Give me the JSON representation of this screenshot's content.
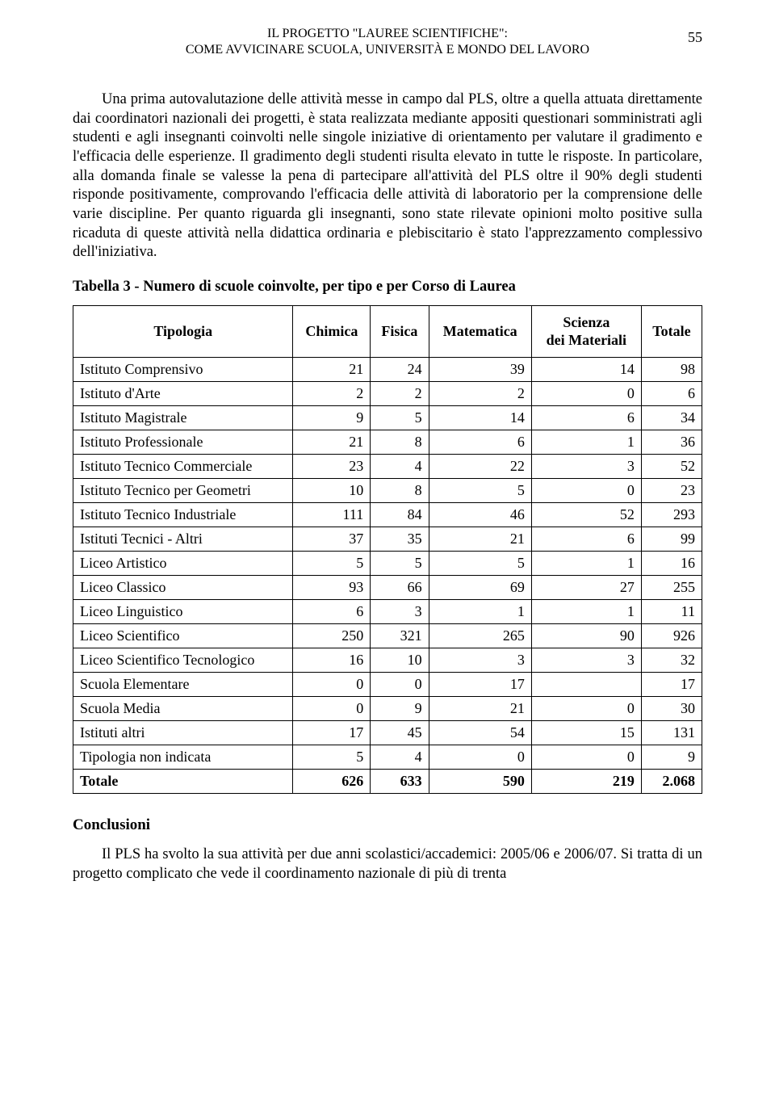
{
  "page_number": "55",
  "header": {
    "line1": "IL PROGETTO \"LAUREE SCIENTIFICHE\":",
    "line2": "COME AVVICINARE SCUOLA, UNIVERSITÀ E MONDO DEL LAVORO"
  },
  "paragraph1": "Una prima autovalutazione delle attività messe in campo dal PLS, oltre a quella attuata direttamente dai coordinatori nazionali dei progetti, è stata realizzata mediante appositi questionari somministrati agli studenti e agli insegnanti coinvolti nelle singole iniziative di orientamento per valutare il gradimento e l'efficacia delle esperienze. Il gradimento degli studenti risulta elevato in tutte le risposte. In particolare, alla domanda finale se valesse la pena di partecipare all'attività del PLS oltre il 90% degli studenti risponde positivamente, comprovando l'efficacia delle attività di laboratorio per la comprensione delle varie discipline. Per quanto riguarda gli insegnanti, sono state rilevate opinioni molto positive sulla ricaduta di queste attività nella didattica ordinaria e plebiscitario è stato l'apprezzamento complessivo dell'iniziativa.",
  "table_caption": "Tabella 3 - Numero di scuole coinvolte, per tipo e per Corso di Laurea",
  "table": {
    "columns": {
      "tipologia": "Tipologia",
      "chimica": "Chimica",
      "fisica": "Fisica",
      "matematica": "Matematica",
      "scienza_line1": "Scienza",
      "scienza_line2": "dei Materiali",
      "totale": "Totale"
    },
    "rows": [
      {
        "label": "Istituto Comprensivo",
        "chimica": "21",
        "fisica": "24",
        "matematica": "39",
        "scienza": "14",
        "totale": "98"
      },
      {
        "label": "Istituto d'Arte",
        "chimica": "2",
        "fisica": "2",
        "matematica": "2",
        "scienza": "0",
        "totale": "6"
      },
      {
        "label": "Istituto Magistrale",
        "chimica": "9",
        "fisica": "5",
        "matematica": "14",
        "scienza": "6",
        "totale": "34"
      },
      {
        "label": "Istituto Professionale",
        "chimica": "21",
        "fisica": "8",
        "matematica": "6",
        "scienza": "1",
        "totale": "36"
      },
      {
        "label": "Istituto Tecnico Commerciale",
        "chimica": "23",
        "fisica": "4",
        "matematica": "22",
        "scienza": "3",
        "totale": "52"
      },
      {
        "label": "Istituto Tecnico per Geometri",
        "chimica": "10",
        "fisica": "8",
        "matematica": "5",
        "scienza": "0",
        "totale": "23"
      },
      {
        "label": "Istituto Tecnico Industriale",
        "chimica": "111",
        "fisica": "84",
        "matematica": "46",
        "scienza": "52",
        "totale": "293"
      },
      {
        "label": "Istituti Tecnici - Altri",
        "chimica": "37",
        "fisica": "35",
        "matematica": "21",
        "scienza": "6",
        "totale": "99"
      },
      {
        "label": "Liceo Artistico",
        "chimica": "5",
        "fisica": "5",
        "matematica": "5",
        "scienza": "1",
        "totale": "16"
      },
      {
        "label": "Liceo Classico",
        "chimica": "93",
        "fisica": "66",
        "matematica": "69",
        "scienza": "27",
        "totale": "255"
      },
      {
        "label": "Liceo Linguistico",
        "chimica": "6",
        "fisica": "3",
        "matematica": "1",
        "scienza": "1",
        "totale": "11"
      },
      {
        "label": "Liceo Scientifico",
        "chimica": "250",
        "fisica": "321",
        "matematica": "265",
        "scienza": "90",
        "totale": "926"
      },
      {
        "label": "Liceo Scientifico Tecnologico",
        "chimica": "16",
        "fisica": "10",
        "matematica": "3",
        "scienza": "3",
        "totale": "32"
      },
      {
        "label": "Scuola Elementare",
        "chimica": "0",
        "fisica": "0",
        "matematica": "17",
        "scienza": "",
        "totale": "17"
      },
      {
        "label": "Scuola Media",
        "chimica": "0",
        "fisica": "9",
        "matematica": "21",
        "scienza": "0",
        "totale": "30"
      },
      {
        "label": "Istituti altri",
        "chimica": "17",
        "fisica": "45",
        "matematica": "54",
        "scienza": "15",
        "totale": "131"
      },
      {
        "label": "Tipologia non indicata",
        "chimica": "5",
        "fisica": "4",
        "matematica": "0",
        "scienza": "0",
        "totale": "9"
      }
    ],
    "total_row": {
      "label": "Totale",
      "chimica": "626",
      "fisica": "633",
      "matematica": "590",
      "scienza": "219",
      "totale": "2.068"
    }
  },
  "conclusions_heading": "Conclusioni",
  "paragraph2": "Il PLS ha svolto la sua attività per due anni scolastici/accademici: 2005/06 e 2006/07. Si tratta di un progetto complicato che vede il coordinamento nazionale di più di trenta"
}
